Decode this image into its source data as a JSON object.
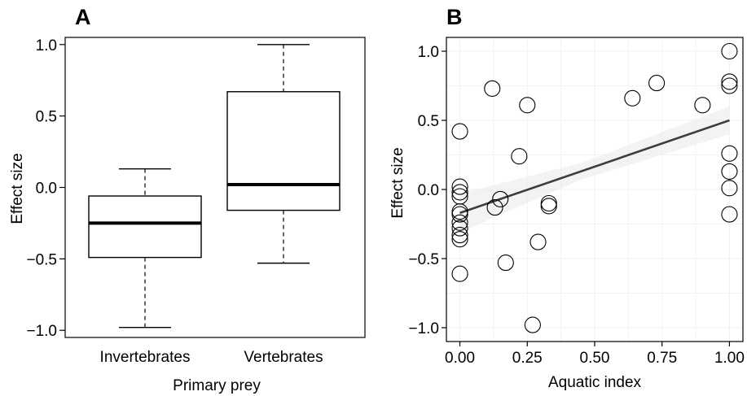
{
  "chart_data": [
    {
      "type": "box",
      "panel_label": "A",
      "xlabel": "Primary prey",
      "ylabel": "Effect size",
      "ylim": [
        -1.05,
        1.05
      ],
      "yticks": [
        {
          "value": 1.0,
          "label": "1.0"
        },
        {
          "value": 0.5,
          "label": "0.5"
        },
        {
          "value": 0.0,
          "label": "0.0"
        },
        {
          "value": -0.5,
          "label": "−0.5"
        },
        {
          "value": -1.0,
          "label": "−1.0"
        }
      ],
      "categories": [
        "Invertebrates",
        "Vertebrates"
      ],
      "boxes": [
        {
          "category": "Invertebrates",
          "min": -0.98,
          "q1": -0.49,
          "median": -0.25,
          "q3": -0.06,
          "max": 0.13
        },
        {
          "category": "Vertebrates",
          "min": -0.53,
          "q1": -0.16,
          "median": 0.02,
          "q3": 0.67,
          "max": 1.0
        }
      ],
      "grid": false,
      "frame": "full box"
    },
    {
      "type": "scatter",
      "panel_label": "B",
      "xlabel": "Aquatic index",
      "ylabel": "Effect size",
      "xlim": [
        -0.05,
        1.05
      ],
      "ylim": [
        -1.1,
        1.1
      ],
      "xticks": [
        {
          "value": 0.0,
          "label": "0.00"
        },
        {
          "value": 0.25,
          "label": "0.25"
        },
        {
          "value": 0.5,
          "label": "0.50"
        },
        {
          "value": 0.75,
          "label": "0.75"
        },
        {
          "value": 1.0,
          "label": "1.00"
        }
      ],
      "yticks": [
        {
          "value": 1.0,
          "label": "1.0"
        },
        {
          "value": 0.5,
          "label": "0.5"
        },
        {
          "value": 0.0,
          "label": "0.0"
        },
        {
          "value": -0.5,
          "label": "−0.5"
        },
        {
          "value": -1.0,
          "label": "−1.0"
        }
      ],
      "points": [
        {
          "x": 0.0,
          "y": 0.42
        },
        {
          "x": 0.0,
          "y": 0.02
        },
        {
          "x": 0.0,
          "y": -0.02
        },
        {
          "x": 0.0,
          "y": -0.05
        },
        {
          "x": 0.0,
          "y": -0.16
        },
        {
          "x": 0.0,
          "y": -0.18
        },
        {
          "x": 0.0,
          "y": -0.24
        },
        {
          "x": 0.0,
          "y": -0.28
        },
        {
          "x": 0.0,
          "y": -0.33
        },
        {
          "x": 0.0,
          "y": -0.36
        },
        {
          "x": 0.0,
          "y": -0.61
        },
        {
          "x": 0.12,
          "y": 0.73
        },
        {
          "x": 0.13,
          "y": -0.13
        },
        {
          "x": 0.15,
          "y": -0.07
        },
        {
          "x": 0.17,
          "y": -0.53
        },
        {
          "x": 0.22,
          "y": 0.24
        },
        {
          "x": 0.25,
          "y": 0.61
        },
        {
          "x": 0.27,
          "y": -0.98
        },
        {
          "x": 0.29,
          "y": -0.38
        },
        {
          "x": 0.33,
          "y": -0.1
        },
        {
          "x": 0.33,
          "y": -0.12
        },
        {
          "x": 0.64,
          "y": 0.66
        },
        {
          "x": 0.73,
          "y": 0.77
        },
        {
          "x": 0.9,
          "y": 0.61
        },
        {
          "x": 1.0,
          "y": 1.0
        },
        {
          "x": 1.0,
          "y": 0.78
        },
        {
          "x": 1.0,
          "y": 0.75
        },
        {
          "x": 1.0,
          "y": 0.26
        },
        {
          "x": 1.0,
          "y": 0.13
        },
        {
          "x": 1.0,
          "y": 0.01
        },
        {
          "x": 1.0,
          "y": -0.18
        }
      ],
      "trend_line": {
        "x": [
          0.0,
          1.0
        ],
        "y": [
          -0.17,
          0.5
        ],
        "color": "#3d3d3d"
      },
      "confidence_band_color": "#ebebeb",
      "grid": true,
      "grid_color": "#f2f2f2",
      "point_style": "open circle",
      "frame": "full box"
    }
  ]
}
